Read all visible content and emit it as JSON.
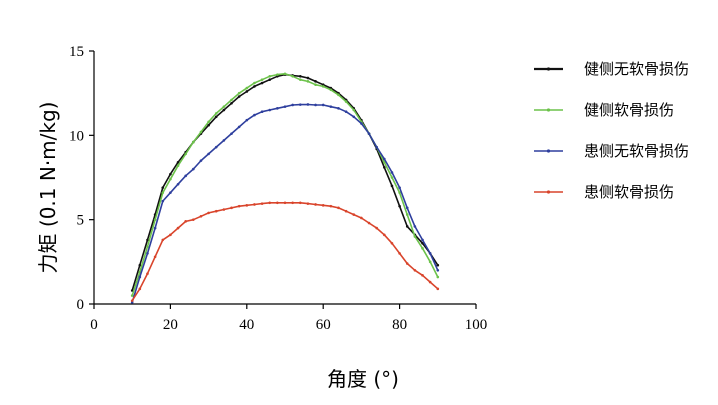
{
  "chart_data": {
    "type": "line",
    "xlabel": "角度 (°)",
    "ylabel": "力矩 (0.1 N·m/kg)",
    "xlim": [
      0,
      100
    ],
    "ylim": [
      0,
      15
    ],
    "xticks": [
      0,
      20,
      40,
      60,
      80,
      100
    ],
    "yticks": [
      0,
      5,
      10,
      15
    ],
    "xtick_labels": [
      "0",
      "20",
      "40",
      "60",
      "80",
      "100"
    ],
    "ytick_labels": [
      "0",
      "5",
      "10",
      "15"
    ],
    "grid": false,
    "legend_position": "right",
    "series": [
      {
        "name": "健侧无软骨损伤",
        "color": "#111111",
        "x": [
          10,
          12,
          14,
          16,
          18,
          20,
          22,
          24,
          26,
          28,
          30,
          32,
          34,
          36,
          38,
          40,
          42,
          44,
          46,
          48,
          50,
          52,
          54,
          56,
          58,
          60,
          62,
          64,
          66,
          68,
          70,
          72,
          74,
          76,
          78,
          80,
          82,
          84,
          86,
          88,
          90
        ],
        "y": [
          0.8,
          2.3,
          3.8,
          5.3,
          6.9,
          7.7,
          8.4,
          9.0,
          9.6,
          10.1,
          10.6,
          11.1,
          11.5,
          11.9,
          12.3,
          12.6,
          12.9,
          13.1,
          13.3,
          13.5,
          13.6,
          13.55,
          13.5,
          13.4,
          13.2,
          13.0,
          12.8,
          12.5,
          12.1,
          11.6,
          10.9,
          10.1,
          9.2,
          8.1,
          7.0,
          5.8,
          4.6,
          4.1,
          3.6,
          3.0,
          2.3
        ]
      },
      {
        "name": "健侧软骨损伤",
        "color": "#6cc24a",
        "x": [
          10,
          12,
          14,
          16,
          18,
          20,
          22,
          24,
          26,
          28,
          30,
          32,
          34,
          36,
          38,
          40,
          42,
          44,
          46,
          48,
          50,
          52,
          54,
          56,
          58,
          60,
          62,
          64,
          66,
          68,
          70,
          72,
          74,
          76,
          78,
          80,
          82,
          84,
          86,
          88,
          90
        ],
        "y": [
          0.5,
          1.9,
          3.4,
          5.0,
          6.6,
          7.4,
          8.2,
          8.9,
          9.6,
          10.2,
          10.8,
          11.3,
          11.7,
          12.1,
          12.5,
          12.8,
          13.1,
          13.3,
          13.5,
          13.6,
          13.65,
          13.5,
          13.3,
          13.2,
          13.0,
          12.9,
          12.7,
          12.4,
          12.0,
          11.5,
          10.8,
          10.1,
          9.3,
          8.4,
          7.5,
          6.6,
          5.3,
          4.0,
          3.3,
          2.5,
          1.6
        ]
      },
      {
        "name": "患侧无软骨损伤",
        "color": "#2e3f9e",
        "x": [
          10,
          12,
          14,
          16,
          18,
          20,
          22,
          24,
          26,
          28,
          30,
          32,
          34,
          36,
          38,
          40,
          42,
          44,
          46,
          48,
          50,
          52,
          54,
          56,
          58,
          60,
          62,
          64,
          66,
          68,
          70,
          72,
          74,
          76,
          78,
          80,
          82,
          84,
          86,
          88,
          90
        ],
        "y": [
          0.1,
          1.6,
          3.0,
          4.5,
          6.1,
          6.6,
          7.1,
          7.6,
          8.0,
          8.5,
          8.9,
          9.3,
          9.7,
          10.1,
          10.5,
          10.9,
          11.2,
          11.4,
          11.5,
          11.6,
          11.7,
          11.8,
          11.82,
          11.83,
          11.8,
          11.8,
          11.7,
          11.6,
          11.4,
          11.1,
          10.7,
          10.1,
          9.3,
          8.6,
          7.8,
          6.9,
          5.7,
          4.6,
          3.8,
          3.0,
          2.0
        ]
      },
      {
        "name": "患侧软骨损伤",
        "color": "#d9442b",
        "x": [
          10,
          12,
          14,
          16,
          18,
          20,
          22,
          24,
          26,
          28,
          30,
          32,
          34,
          36,
          38,
          40,
          42,
          44,
          46,
          48,
          50,
          52,
          54,
          56,
          58,
          60,
          62,
          64,
          66,
          68,
          70,
          72,
          74,
          76,
          78,
          80,
          82,
          84,
          86,
          88,
          90
        ],
        "y": [
          0.2,
          0.9,
          1.8,
          2.8,
          3.8,
          4.1,
          4.5,
          4.9,
          5.0,
          5.2,
          5.4,
          5.5,
          5.6,
          5.7,
          5.8,
          5.85,
          5.9,
          5.95,
          6.0,
          6.0,
          6.0,
          6.0,
          6.0,
          5.95,
          5.9,
          5.85,
          5.8,
          5.7,
          5.5,
          5.3,
          5.1,
          4.8,
          4.5,
          4.1,
          3.6,
          3.0,
          2.4,
          2.0,
          1.7,
          1.3,
          0.9
        ]
      }
    ]
  }
}
